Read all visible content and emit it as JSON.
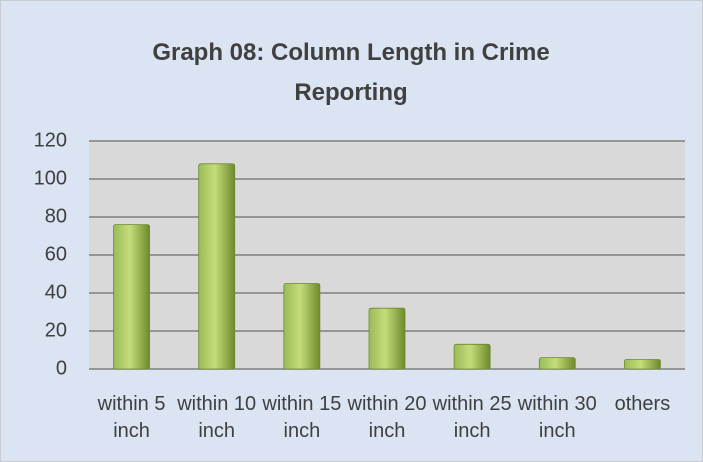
{
  "chart_data": {
    "type": "bar",
    "title": "Graph 08: Column Length in Crime Reporting",
    "categories": [
      "within 5 inch",
      "within 10 inch",
      "within 15 inch",
      "within 20 inch",
      "within 25 inch",
      "within 30 inch",
      "others"
    ],
    "values": [
      76,
      108,
      45,
      32,
      13,
      6,
      5
    ],
    "color": "#9bbb59",
    "ylim": [
      0,
      120
    ],
    "yticks": [
      0,
      20,
      40,
      60,
      80,
      100,
      120
    ],
    "grid": true
  }
}
